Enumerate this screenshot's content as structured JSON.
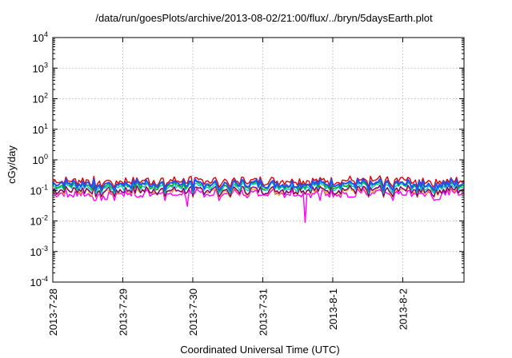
{
  "chart_data": {
    "type": "line",
    "title": "/data/run/goesPlots/archive/2013-08-02/21:00/flux/../bryn/5daysEarth.plot",
    "xlabel": "Coordinated Universal Time (UTC)",
    "ylabel": "cGy/day",
    "y_scale": "log",
    "ylim": [
      0.0001,
      10000
    ],
    "xlim": [
      "2013-07-28T00:00",
      "2013-08-02T21:00"
    ],
    "grid": true,
    "legend": "none",
    "x_tick_labels": [
      "2013-7-28",
      "2013-7-29",
      "2013-7-30",
      "2013-7-31",
      "2013-8-1",
      "2013-8-2"
    ],
    "y_tick_labels": [
      {
        "base": "10",
        "exp": "-4",
        "value": 0.0001
      },
      {
        "base": "10",
        "exp": "-3",
        "value": 0.001
      },
      {
        "base": "10",
        "exp": "-2",
        "value": 0.01
      },
      {
        "base": "10",
        "exp": "-1",
        "value": 0.1
      },
      {
        "base": "10",
        "exp": "0",
        "value": 1
      },
      {
        "base": "10",
        "exp": "1",
        "value": 10
      },
      {
        "base": "10",
        "exp": "2",
        "value": 100
      },
      {
        "base": "10",
        "exp": "3",
        "value": 1000
      },
      {
        "base": "10",
        "exp": "4",
        "value": 10000
      }
    ],
    "series": [
      {
        "color": "#ff00ff",
        "baseline": 0.085,
        "x": [
          "2013-07-28T00:00",
          "2013-07-28T06:00",
          "2013-07-28T12:00",
          "2013-07-28T18:00",
          "2013-07-29T00:00",
          "2013-07-29T06:00",
          "2013-07-29T12:00",
          "2013-07-29T18:00",
          "2013-07-29T21:30",
          "2013-07-30T00:00",
          "2013-07-30T06:00",
          "2013-07-30T12:00",
          "2013-07-30T18:00",
          "2013-07-31T00:00",
          "2013-07-31T06:00",
          "2013-07-31T12:00",
          "2013-07-31T15:30",
          "2013-07-31T18:00",
          "2013-08-01T00:00",
          "2013-08-01T06:00",
          "2013-08-01T12:00",
          "2013-08-01T18:00",
          "2013-08-02T00:00",
          "2013-08-02T06:00",
          "2013-08-02T12:00",
          "2013-08-02T21:00"
        ],
        "y": [
          0.08,
          0.06,
          0.07,
          0.05,
          0.08,
          0.06,
          0.08,
          0.07,
          0.03,
          0.08,
          0.07,
          0.08,
          0.07,
          0.07,
          0.08,
          0.07,
          0.009,
          0.08,
          0.08,
          0.06,
          0.07,
          0.08,
          0.07,
          0.08,
          0.05,
          0.08
        ]
      },
      {
        "color": "#e0a020",
        "baseline": 0.098,
        "y": []
      },
      {
        "color": "#7a0078",
        "baseline": 0.105,
        "y": []
      },
      {
        "color": "#00c8c8",
        "baseline": 0.135,
        "y": []
      },
      {
        "color": "#00b000",
        "baseline": 0.155,
        "y": []
      },
      {
        "color": "#e00000",
        "baseline": 0.21,
        "y": []
      },
      {
        "color": "#2050ff",
        "baseline": 0.17,
        "y": []
      }
    ]
  }
}
